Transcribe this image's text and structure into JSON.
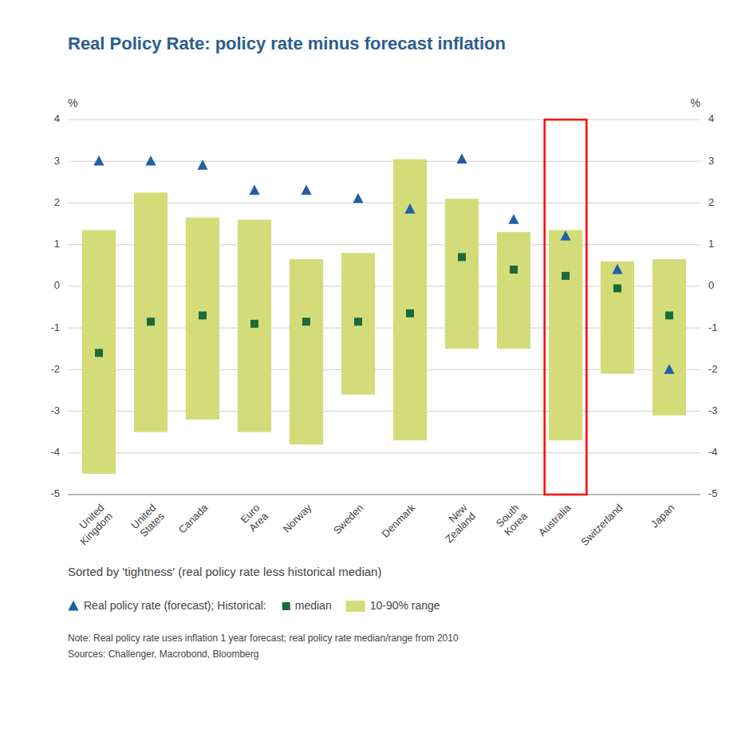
{
  "chart_data": {
    "type": "range_bar",
    "title": "Real Policy Rate: policy rate minus forecast inflation",
    "subtitle": "Sorted by 'tightness' (real policy rate less historical median)",
    "y_label": "%",
    "y2_label": "%",
    "categories": [
      "United\nKingdom",
      "United\nStates",
      "Canada",
      "Euro\nArea",
      "Norway",
      "Sweden",
      "Denmark",
      "New\nZealand",
      "South\nKorea",
      "Australia",
      "Switzerland",
      "Japan"
    ],
    "series": [
      {
        "name": "10-90% range",
        "type": "range_bar",
        "color": "#d4dc7a",
        "low": [
          -4.5,
          -3.5,
          -3.2,
          -3.5,
          -3.8,
          -2.6,
          -3.7,
          -1.5,
          -1.5,
          -3.7,
          -2.1,
          -3.1
        ],
        "high": [
          1.35,
          2.25,
          1.65,
          1.6,
          0.65,
          0.8,
          3.05,
          2.1,
          1.3,
          1.35,
          0.6,
          0.65
        ]
      },
      {
        "name": "median",
        "type": "scatter",
        "marker": "square",
        "color": "#1a6b3c",
        "values": [
          -1.6,
          -0.85,
          -0.7,
          -0.9,
          -0.85,
          -0.85,
          -0.65,
          0.7,
          0.4,
          0.25,
          -0.05,
          -0.7
        ]
      },
      {
        "name": "Real policy rate (forecast); Historical:",
        "type": "scatter",
        "marker": "triangle",
        "color": "#1f5fa6",
        "values": [
          3.0,
          3.0,
          2.9,
          2.3,
          2.3,
          2.1,
          1.85,
          3.05,
          1.6,
          1.2,
          0.4,
          -2.0
        ]
      }
    ],
    "highlight_index": 9,
    "highlight_color": "red",
    "ylim": [
      -5,
      4
    ],
    "yticks": [
      -5,
      -4,
      -3,
      -2,
      -1,
      0,
      1,
      2,
      3,
      4
    ],
    "y2lim": [
      -5,
      4
    ],
    "y2ticks": [
      -5,
      -4,
      -3,
      -2,
      -1,
      0,
      1,
      2,
      3,
      4
    ],
    "grid": true,
    "legend": "bottom",
    "notes": [
      "Note: Real policy rate uses inflation 1 year forecast; real policy rate median/range from 2010",
      "Sources: Challenger, Macrobond, Bloomberg"
    ]
  }
}
